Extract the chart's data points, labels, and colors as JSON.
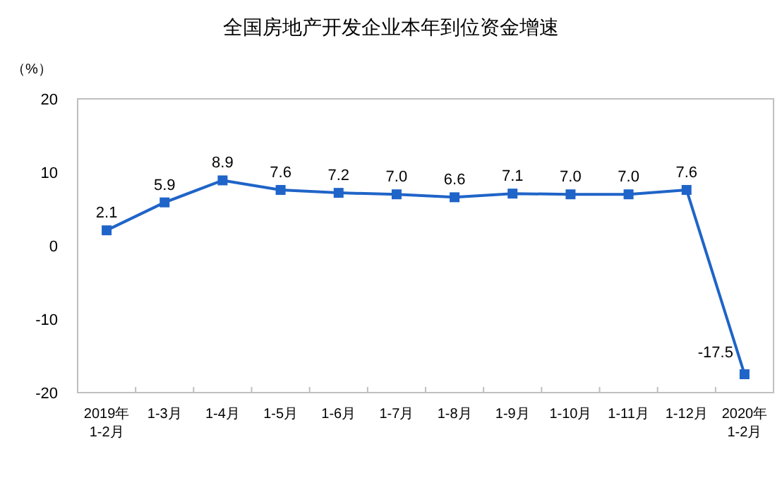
{
  "chart_data": {
    "type": "line",
    "title": "全国房地产开发企业本年到位资金增速",
    "ylabel": "（%）",
    "categories": [
      "2019年\n1-2月",
      "1-3月",
      "1-4月",
      "1-5月",
      "1-6月",
      "1-7月",
      "1-8月",
      "1-9月",
      "1-10月",
      "1-11月",
      "1-12月",
      "2020年\n1-2月"
    ],
    "values": [
      2.1,
      5.9,
      8.9,
      7.6,
      7.2,
      7.0,
      6.6,
      7.1,
      7.0,
      7.0,
      7.6,
      -17.5
    ],
    "value_labels": [
      "2.1",
      "5.9",
      "8.9",
      "7.6",
      "7.2",
      "7.0",
      "6.6",
      "7.1",
      "7.0",
      "7.0",
      "7.6",
      "-17.5"
    ],
    "color": "#1f64c8",
    "marker": "square",
    "ylim": [
      -20,
      20
    ],
    "yticks": [
      -20,
      -10,
      0,
      10,
      20
    ]
  }
}
